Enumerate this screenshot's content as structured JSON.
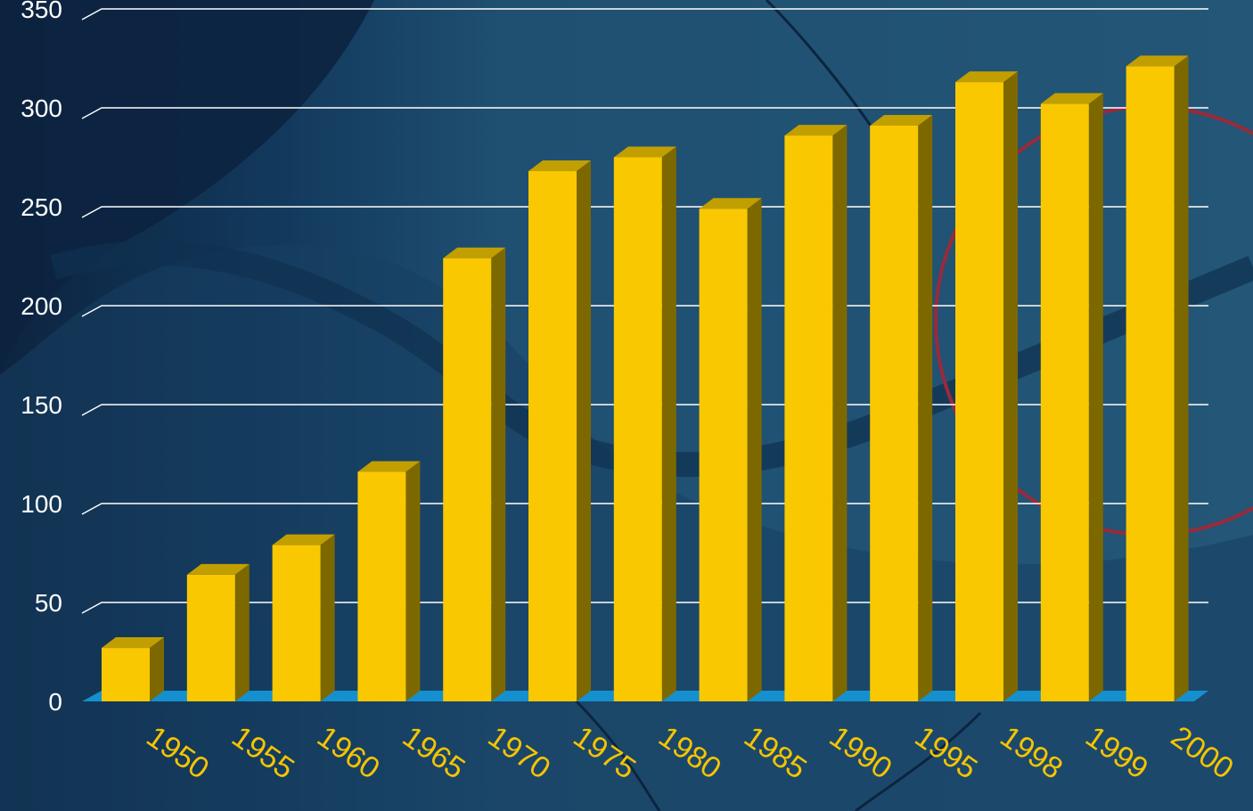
{
  "chart_data": {
    "type": "bar",
    "title": "",
    "xlabel": "",
    "ylabel": "",
    "categories": [
      "1950",
      "1955",
      "1960",
      "1965",
      "1970",
      "1975",
      "1980",
      "1985",
      "1990",
      "1995",
      "1998",
      "1999",
      "2000"
    ],
    "values": [
      27,
      64,
      79,
      116,
      224,
      268,
      275,
      249,
      286,
      291,
      313,
      302,
      321
    ],
    "ylim": [
      0,
      350
    ],
    "yticks": [
      0,
      50,
      100,
      150,
      200,
      250,
      300,
      350
    ],
    "grid": true,
    "legend": "none",
    "colors": {
      "bar_front": "#f9c800",
      "bar_side": "#7d6800",
      "bar_top": "#c19f00",
      "floor": "#1590cf",
      "grid": "#ffffff",
      "ytick_text": "#ffffff",
      "xtick_text": "#f5c400",
      "background_dark": "#0d2440",
      "background_mid": "#214f70",
      "map_land": "#12375a",
      "map_circle": "#9a2a3a"
    }
  }
}
